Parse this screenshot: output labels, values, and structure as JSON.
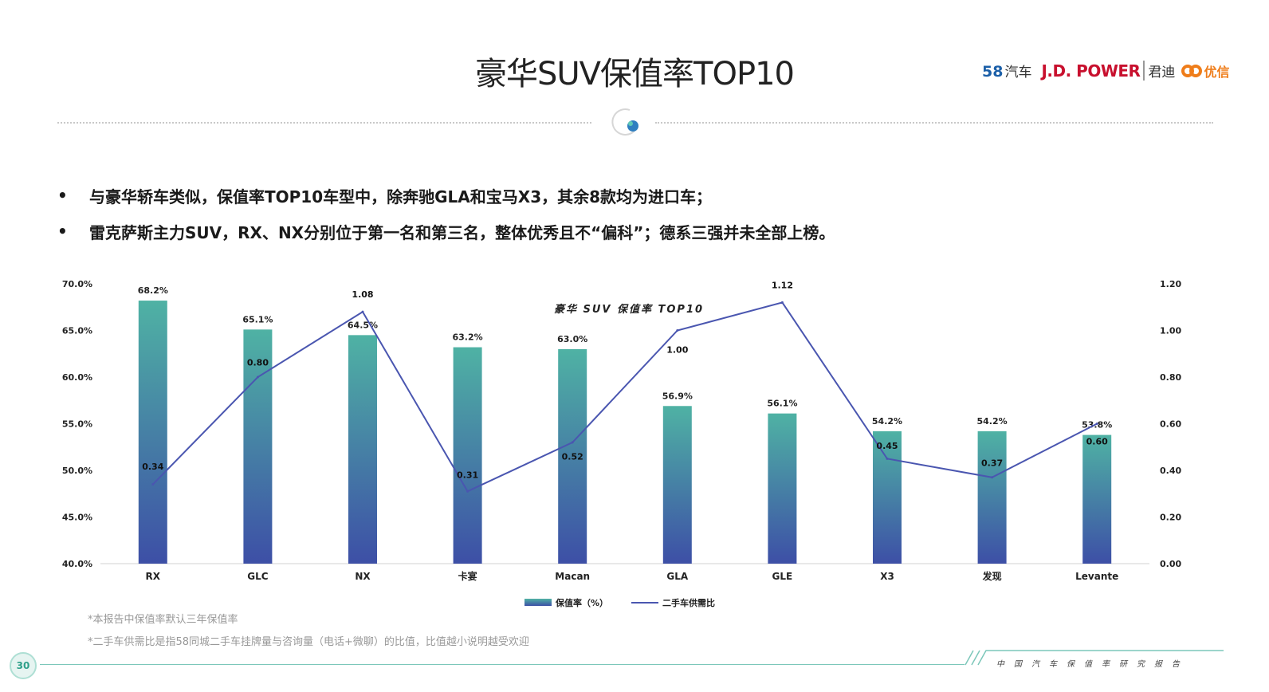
{
  "page": {
    "title": "豪华SUV保值率TOP10",
    "logos": {
      "brand1_num": "58",
      "brand1_text": "汽车",
      "brand2": "J.D. POWER",
      "brand3": "君迪",
      "brand4": "优信"
    },
    "bullets": [
      "与豪华轿车类似，保值率TOP10车型中，除奔驰GLA和宝马X3，其余8款均为进口车；",
      "雷克萨斯主力SUV，RX、NX分别位于第一名和第三名，整体优秀且不“偏科”；德系三强并未全部上榜。"
    ],
    "bullet_marker": "•",
    "notes": [
      "*本报告中保值率默认三年保值率",
      "*二手车供需比是指58同城二手车挂牌量与咨询量（电话+微聊）的比值，比值越小说明越受欢迎"
    ],
    "page_number": "30",
    "footer": "中国汽车保值率研究报告"
  },
  "chart_data": {
    "type": "bar",
    "title": "豪华 SUV 保值率 TOP10",
    "categories": [
      "RX",
      "GLC",
      "NX",
      "卡宴",
      "Macan",
      "GLA",
      "GLE",
      "X3",
      "发现",
      "Levante"
    ],
    "series": [
      {
        "name": "保值率（%）",
        "type": "bar",
        "axis": "left",
        "values": [
          68.2,
          65.1,
          64.5,
          63.2,
          63.0,
          56.9,
          56.1,
          54.2,
          54.2,
          53.8
        ],
        "labels": [
          "68.2%",
          "65.1%",
          "64.5%",
          "63.2%",
          "63.0%",
          "56.9%",
          "56.1%",
          "54.2%",
          "54.2%",
          "53.8%"
        ],
        "color_top": "#4fb2a4",
        "color_bottom": "#3d4fa6"
      },
      {
        "name": "二手车供需比",
        "type": "line",
        "axis": "right",
        "values": [
          0.34,
          0.8,
          1.08,
          0.31,
          0.52,
          1.0,
          1.12,
          0.45,
          0.37,
          0.6
        ],
        "labels": [
          "0.34",
          "0.80",
          "1.08",
          "0.31",
          "0.52",
          "1.00",
          "1.12",
          "0.45",
          "0.37",
          "0.60"
        ],
        "color": "#4a56b0"
      }
    ],
    "y_left": {
      "min": 40,
      "max": 70,
      "ticks": [
        "40.0%",
        "45.0%",
        "50.0%",
        "55.0%",
        "60.0%",
        "65.0%",
        "70.0%"
      ]
    },
    "y_right": {
      "min": 0,
      "max": 1.2,
      "ticks": [
        "0.00",
        "0.20",
        "0.40",
        "0.60",
        "0.80",
        "1.00",
        "1.20"
      ]
    },
    "grid": false,
    "legend_position": "bottom"
  }
}
